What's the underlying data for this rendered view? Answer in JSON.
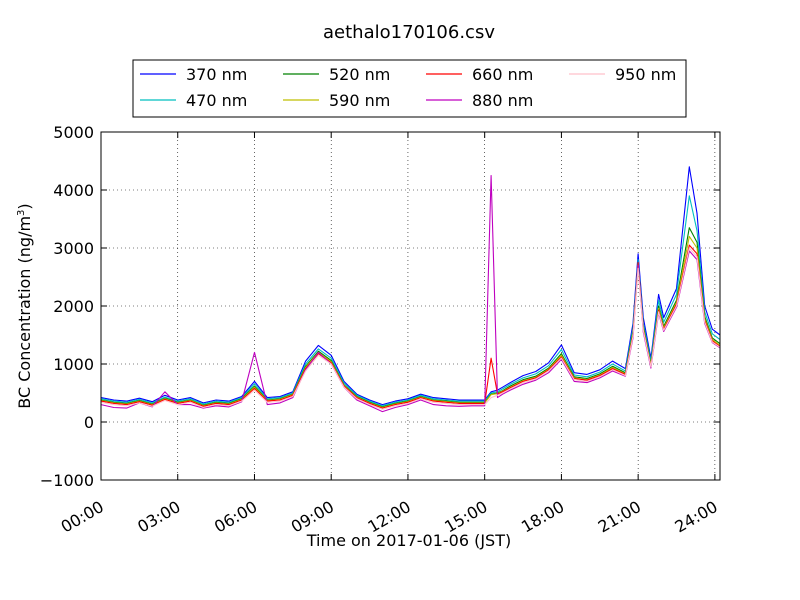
{
  "chart_data": {
    "type": "line",
    "title": "aethalo170106.csv",
    "xlabel": "Time on 2017-01-06 (JST)",
    "ylabel": "BC Concentration (ng/m³)",
    "ylabel_main": "BC Concentration (ng/m",
    "ylabel_sup": "3",
    "ylabel_close": ")",
    "xlim": [
      0,
      24.2
    ],
    "ylim": [
      -1000,
      5000
    ],
    "x_ticks": [
      0,
      3,
      6,
      9,
      12,
      15,
      18,
      21,
      24
    ],
    "x_tick_labels": [
      "00:00",
      "03:00",
      "06:00",
      "09:00",
      "12:00",
      "15:00",
      "18:00",
      "21:00",
      "24:00"
    ],
    "y_ticks": [
      -1000,
      0,
      1000,
      2000,
      3000,
      4000,
      5000
    ],
    "y_tick_labels": [
      "−1000",
      "0",
      "1000",
      "2000",
      "3000",
      "4000",
      "5000"
    ],
    "grid": true,
    "legend_position": "top-center",
    "x": [
      0,
      0.5,
      1,
      1.5,
      2,
      2.5,
      3,
      3.5,
      4,
      4.5,
      5,
      5.5,
      6,
      6.5,
      7,
      7.5,
      8,
      8.5,
      9,
      9.5,
      10,
      10.5,
      11,
      11.5,
      12,
      12.5,
      13,
      13.5,
      14,
      14.5,
      15,
      15.25,
      15.5,
      15.7,
      16,
      16.5,
      17,
      17.5,
      18,
      18.5,
      19,
      19.5,
      20,
      20.5,
      20.8,
      21,
      21.2,
      21.5,
      21.8,
      22,
      22.5,
      23,
      23.3,
      23.6,
      23.9,
      24.2
    ],
    "series": [
      {
        "name": "370 nm",
        "color": "#0000ff",
        "values": [
          420,
          380,
          360,
          410,
          350,
          460,
          380,
          420,
          330,
          380,
          360,
          440,
          700,
          420,
          440,
          520,
          1050,
          1320,
          1150,
          700,
          480,
          380,
          300,
          360,
          400,
          480,
          420,
          400,
          380,
          380,
          380,
          520,
          550,
          600,
          680,
          800,
          870,
          1020,
          1330,
          850,
          820,
          900,
          1050,
          920,
          1700,
          2900,
          1800,
          1100,
          2200,
          1800,
          2300,
          4400,
          3600,
          2000,
          1600,
          1500
        ]
      },
      {
        "name": "470 nm",
        "color": "#00bfbf",
        "values": [
          400,
          360,
          340,
          390,
          330,
          430,
          360,
          400,
          310,
          360,
          340,
          420,
          660,
          400,
          420,
          500,
          1000,
          1260,
          1100,
          670,
          460,
          360,
          280,
          340,
          380,
          460,
          400,
          380,
          360,
          360,
          360,
          500,
          520,
          570,
          650,
          760,
          830,
          970,
          1250,
          810,
          780,
          860,
          1000,
          880,
          1620,
          2800,
          1700,
          1050,
          2100,
          1720,
          2200,
          3900,
          3300,
          1900,
          1520,
          1420
        ]
      },
      {
        "name": "520 nm",
        "color": "#008000",
        "values": [
          380,
          340,
          320,
          370,
          310,
          410,
          340,
          380,
          290,
          340,
          320,
          400,
          620,
          380,
          400,
          480,
          960,
          1220,
          1060,
          640,
          440,
          340,
          260,
          320,
          360,
          440,
          380,
          360,
          340,
          340,
          340,
          480,
          500,
          540,
          620,
          730,
          790,
          930,
          1180,
          780,
          750,
          830,
          960,
          850,
          1560,
          2700,
          1650,
          1000,
          2000,
          1650,
          2100,
          3350,
          3100,
          1820,
          1450,
          1350
        ]
      },
      {
        "name": "590 nm",
        "color": "#bfbf00",
        "values": [
          370,
          330,
          310,
          360,
          300,
          400,
          330,
          370,
          280,
          330,
          310,
          390,
          600,
          370,
          390,
          470,
          940,
          1200,
          1040,
          630,
          430,
          330,
          250,
          310,
          350,
          430,
          370,
          350,
          330,
          330,
          330,
          470,
          490,
          530,
          600,
          710,
          770,
          910,
          1150,
          760,
          730,
          810,
          940,
          830,
          1530,
          2650,
          1620,
          980,
          1960,
          1620,
          2060,
          3200,
          3000,
          1780,
          1420,
          1320
        ]
      },
      {
        "name": "660 nm",
        "color": "#ff0000",
        "values": [
          360,
          320,
          300,
          350,
          290,
          390,
          320,
          360,
          270,
          320,
          300,
          380,
          580,
          360,
          380,
          460,
          920,
          1180,
          1020,
          620,
          420,
          320,
          240,
          300,
          340,
          420,
          360,
          340,
          320,
          320,
          320,
          1100,
          480,
          520,
          590,
          700,
          760,
          900,
          1120,
          750,
          720,
          800,
          920,
          820,
          1500,
          2750,
          1600,
          960,
          1930,
          1600,
          2030,
          3050,
          2900,
          1750,
          1400,
          1300
        ]
      },
      {
        "name": "880 nm",
        "color": "#bf00bf",
        "values": [
          300,
          250,
          240,
          330,
          260,
          520,
          300,
          300,
          240,
          280,
          260,
          350,
          1200,
          300,
          330,
          420,
          900,
          1200,
          1000,
          600,
          380,
          280,
          180,
          250,
          300,
          380,
          300,
          280,
          270,
          280,
          280,
          4250,
          420,
          480,
          550,
          650,
          720,
          850,
          1080,
          700,
          680,
          760,
          880,
          790,
          1450,
          2700,
          1550,
          930,
          1880,
          1560,
          1980,
          2950,
          2800,
          1700,
          1370,
          1280
        ]
      },
      {
        "name": "950 nm",
        "color": "#ffc0cb",
        "values": [
          340,
          300,
          280,
          330,
          270,
          370,
          300,
          340,
          250,
          300,
          280,
          360,
          550,
          340,
          360,
          440,
          880,
          1150,
          1000,
          600,
          400,
          300,
          220,
          280,
          320,
          400,
          340,
          320,
          300,
          300,
          300,
          420,
          460,
          500,
          570,
          680,
          740,
          880,
          1100,
          730,
          700,
          780,
          900,
          800,
          1480,
          2650,
          1580,
          950,
          1900,
          1580,
          2000,
          3000,
          2850,
          1720,
          1380,
          1290
        ]
      }
    ]
  }
}
